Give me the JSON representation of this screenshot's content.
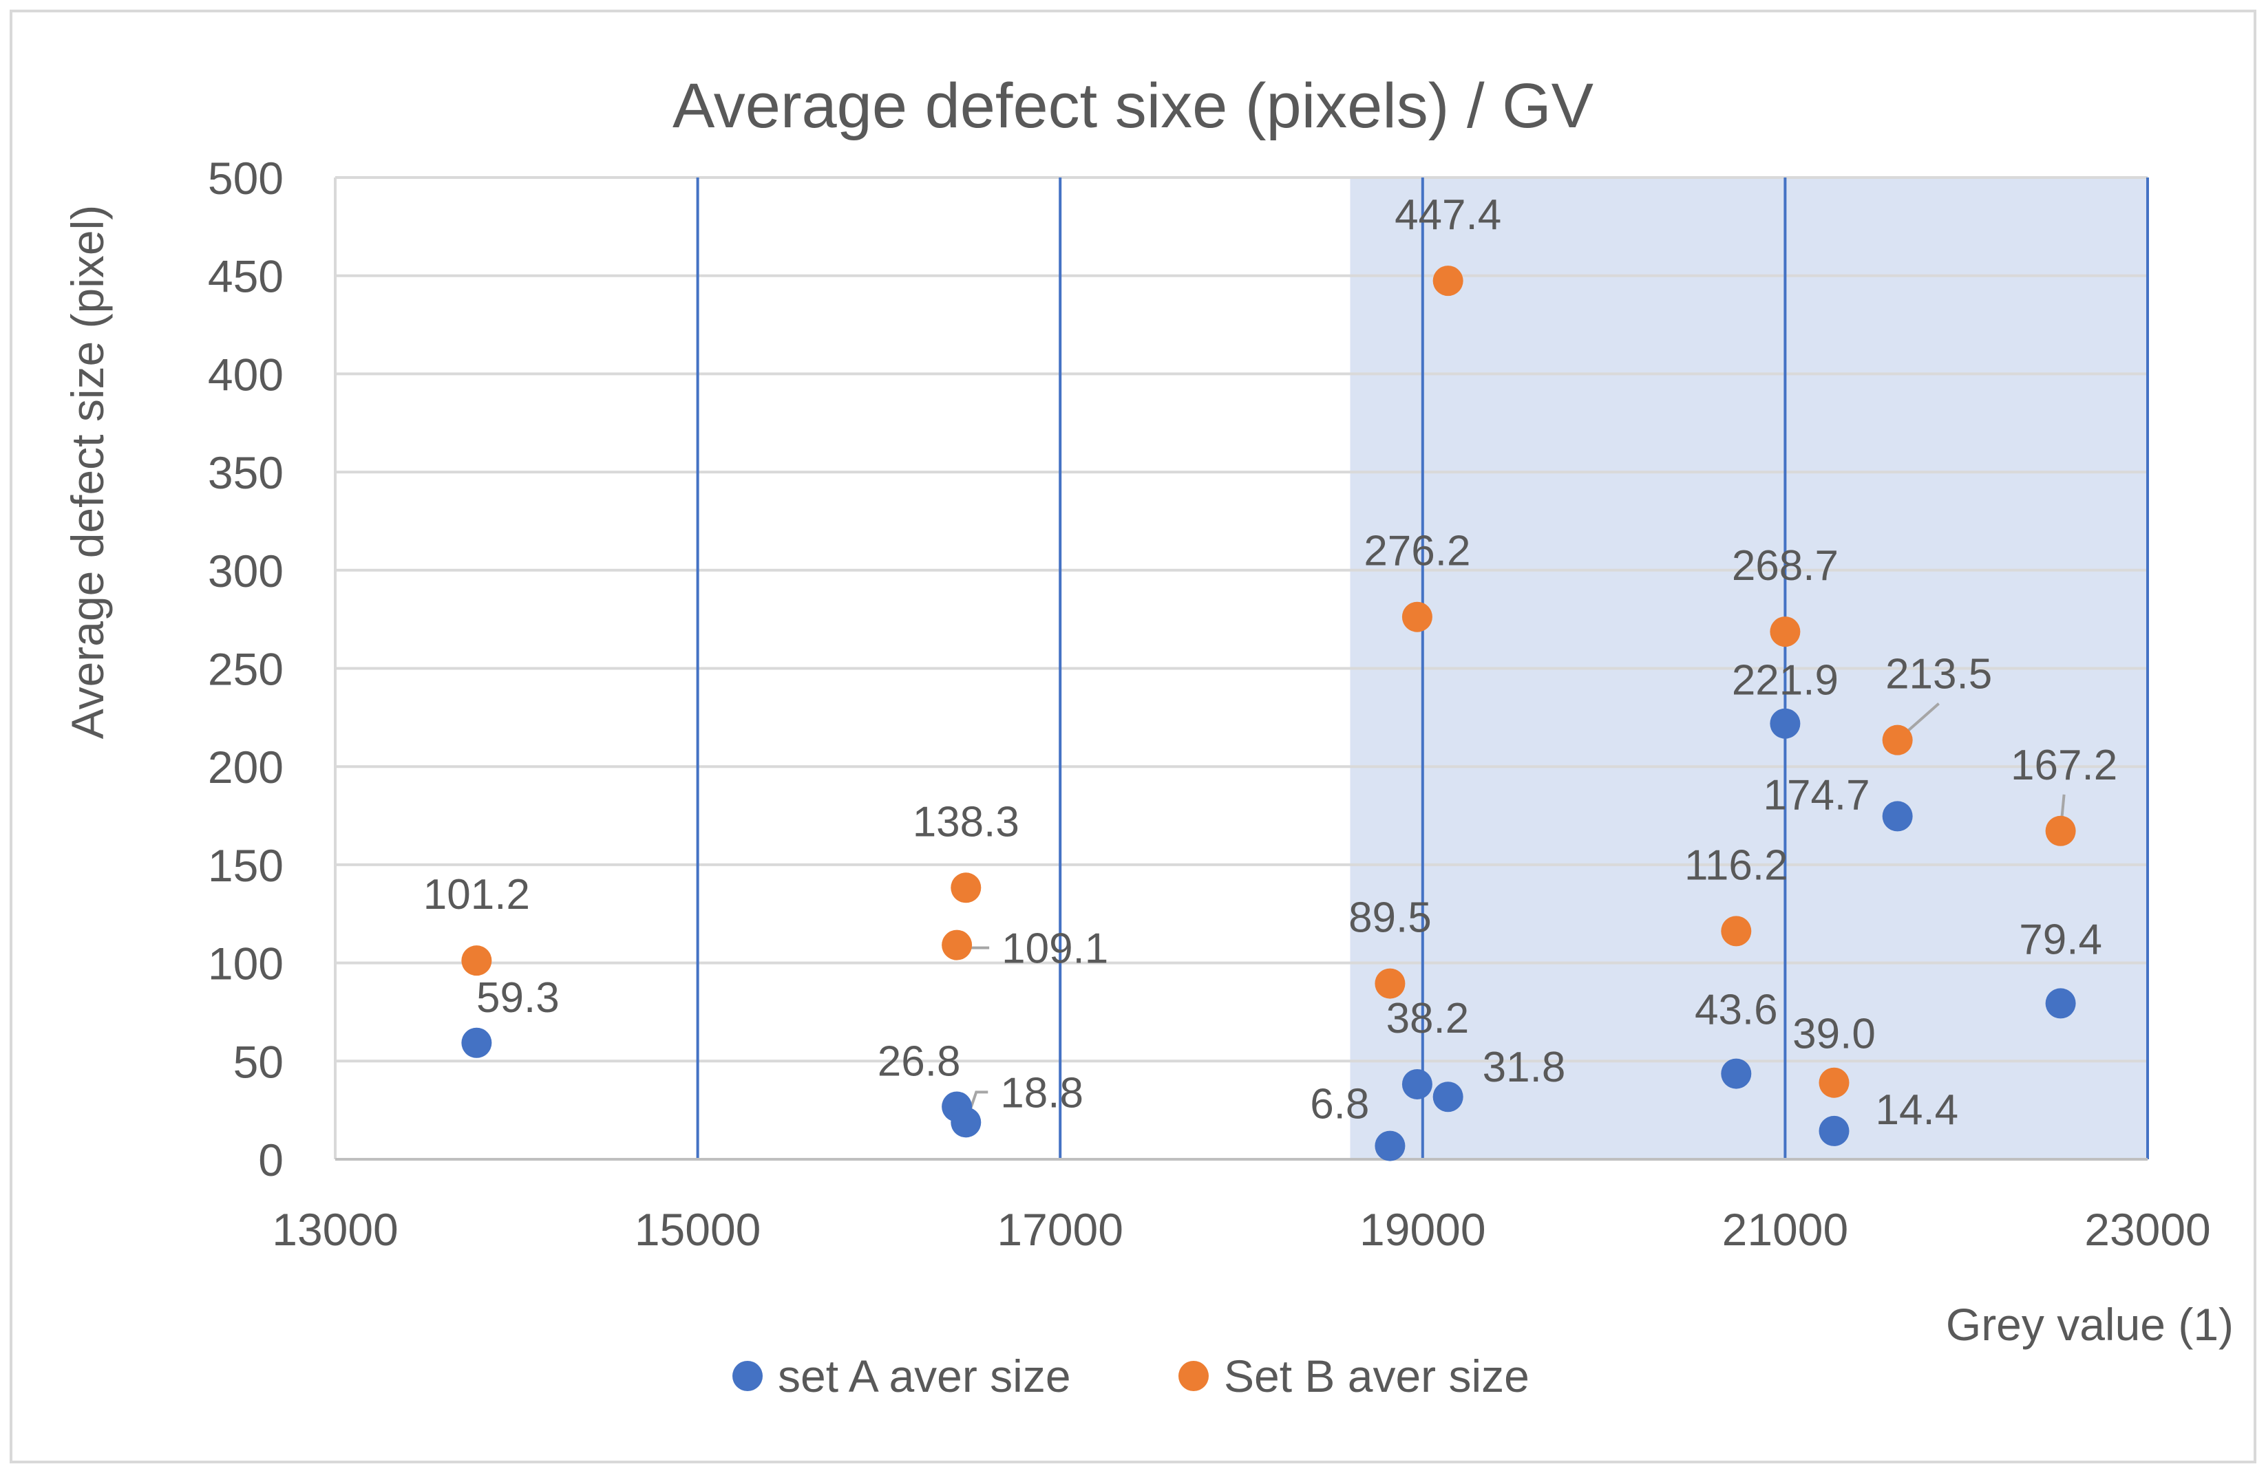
{
  "chart_data": {
    "type": "scatter",
    "title": "Average defect sixe (pixels) / GV",
    "xlabel": "Grey value (1)",
    "ylabel": "Average defect size (pixel)",
    "xlim": [
      13000,
      23000
    ],
    "ylim": [
      0,
      500
    ],
    "x_ticks": [
      13000,
      15000,
      17000,
      19000,
      21000,
      23000
    ],
    "y_ticks": [
      0,
      50,
      100,
      150,
      200,
      250,
      300,
      350,
      400,
      450,
      500
    ],
    "x_tick_labels": [
      "13000",
      "15000",
      "17000",
      "19000",
      "21000",
      "23000"
    ],
    "y_tick_labels": [
      "0",
      "50",
      "100",
      "150",
      "200",
      "250",
      "300",
      "350",
      "400",
      "450",
      "500"
    ],
    "highlight_region": {
      "x_from": 18600,
      "x_to": 23000
    },
    "vertical_reference_lines": [
      15000,
      17000,
      19000,
      21000,
      23000
    ],
    "legend_position": "bottom",
    "series": [
      {
        "name": "set A aver size",
        "color": "#4472c4",
        "points": [
          {
            "x": 13780,
            "y": 59.3,
            "label": "59.3"
          },
          {
            "x": 16430,
            "y": 26.8,
            "label": "26.8"
          },
          {
            "x": 16480,
            "y": 18.8,
            "label": "18.8"
          },
          {
            "x": 18820,
            "y": 6.8,
            "label": "6.8"
          },
          {
            "x": 18970,
            "y": 38.2,
            "label": "38.2"
          },
          {
            "x": 19140,
            "y": 31.8,
            "label": "31.8"
          },
          {
            "x": 20730,
            "y": 43.6,
            "label": "43.6"
          },
          {
            "x": 21000,
            "y": 221.9,
            "label": "221.9"
          },
          {
            "x": 21270,
            "y": 14.4,
            "label": "14.4"
          },
          {
            "x": 21620,
            "y": 174.7,
            "label": "174.7"
          },
          {
            "x": 22520,
            "y": 79.4,
            "label": "79.4"
          }
        ]
      },
      {
        "name": "Set B aver size",
        "color": "#ed7d31",
        "points": [
          {
            "x": 13780,
            "y": 101.2,
            "label": "101.2"
          },
          {
            "x": 16430,
            "y": 109.1,
            "label": "109.1"
          },
          {
            "x": 16480,
            "y": 138.3,
            "label": "138.3"
          },
          {
            "x": 18820,
            "y": 89.5,
            "label": "89.5"
          },
          {
            "x": 18970,
            "y": 276.2,
            "label": "276.2"
          },
          {
            "x": 19140,
            "y": 447.4,
            "label": "447.4"
          },
          {
            "x": 20730,
            "y": 116.2,
            "label": "116.2"
          },
          {
            "x": 21000,
            "y": 268.7,
            "label": "268.7"
          },
          {
            "x": 21270,
            "y": 39.0,
            "label": "39.0"
          },
          {
            "x": 21620,
            "y": 213.5,
            "label": "213.5"
          },
          {
            "x": 22520,
            "y": 167.2,
            "label": "167.2"
          }
        ]
      }
    ]
  }
}
